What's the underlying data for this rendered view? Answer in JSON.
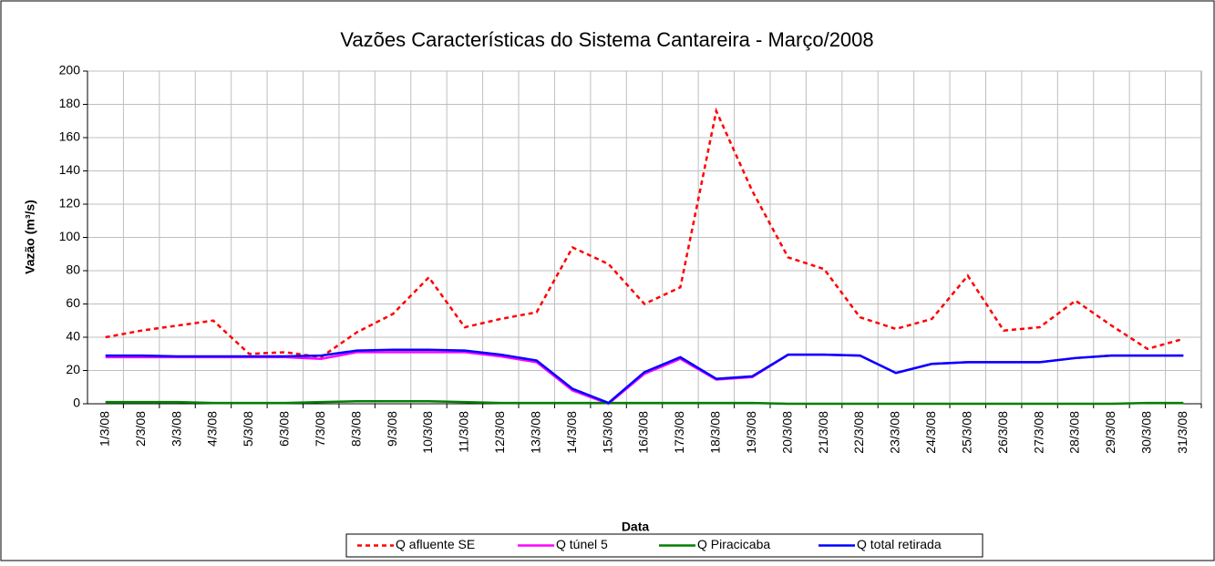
{
  "chart_data": {
    "type": "line",
    "title": "Vazões Características do Sistema Cantareira - Março/2008",
    "x_label": "Data",
    "y_label": "Vazão (m³/s)",
    "categories": [
      "1/3/08",
      "2/3/08",
      "3/3/08",
      "4/3/08",
      "5/3/08",
      "6/3/08",
      "7/3/08",
      "8/3/08",
      "9/3/08",
      "10/3/08",
      "11/3/08",
      "12/3/08",
      "13/3/08",
      "14/3/08",
      "15/3/08",
      "16/3/08",
      "17/3/08",
      "18/3/08",
      "19/3/08",
      "20/3/08",
      "21/3/08",
      "22/3/08",
      "23/3/08",
      "24/3/08",
      "25/3/08",
      "26/3/08",
      "27/3/08",
      "28/3/08",
      "29/3/08",
      "30/3/08",
      "31/3/08"
    ],
    "series": [
      {
        "name": "Q afluente SE",
        "color": "#ff0000",
        "dashed": true,
        "values": [
          40,
          44,
          47,
          50,
          30,
          31,
          28,
          43,
          54,
          76,
          46,
          51,
          55,
          94,
          84,
          60,
          70,
          176,
          128,
          88,
          81,
          52,
          45,
          51,
          77,
          44,
          46,
          62,
          47,
          33,
          39
        ]
      },
      {
        "name": "Q túnel 5",
        "color": "#ff00ff",
        "dashed": false,
        "values": [
          28,
          28,
          28,
          28,
          28,
          28,
          27,
          31,
          31,
          31,
          31,
          28.5,
          25,
          8,
          0,
          18,
          27,
          14.5,
          16,
          29.5,
          29.5,
          29,
          18.5,
          24,
          25,
          25,
          25,
          27.5,
          29,
          29,
          29
        ]
      },
      {
        "name": "Q Piracicaba",
        "color": "#008000",
        "dashed": false,
        "values": [
          1,
          1,
          1,
          0.5,
          0.5,
          0.5,
          1,
          1.5,
          1.5,
          1.5,
          1,
          0.5,
          0.5,
          0.5,
          0.5,
          0.5,
          0.5,
          0.5,
          0.5,
          0,
          0,
          0,
          0,
          0,
          0,
          0,
          0,
          0,
          0,
          0.5,
          0.5
        ]
      },
      {
        "name": "Q total retirada",
        "color": "#0000ff",
        "dashed": false,
        "values": [
          29,
          29,
          28.5,
          28.5,
          28.5,
          28.5,
          29,
          32,
          32.5,
          32.5,
          32,
          29.5,
          26,
          9,
          0.5,
          19,
          28,
          15,
          16.5,
          29.5,
          29.5,
          29,
          18.5,
          24,
          25,
          25,
          25,
          27.5,
          29,
          29,
          29
        ]
      }
    ],
    "ylim": [
      0,
      200
    ],
    "yticks": [
      0,
      20,
      40,
      60,
      80,
      100,
      120,
      140,
      160,
      180,
      200
    ],
    "grid": true
  }
}
